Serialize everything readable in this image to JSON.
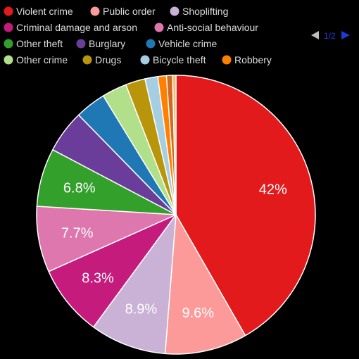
{
  "chart_data": {
    "type": "pie",
    "legend_position": "top",
    "legend_pager": {
      "current": 1,
      "total": 2,
      "text": "1/2"
    },
    "slices": [
      {
        "name": "Violent crime",
        "value": 42,
        "label": "42%",
        "color": "#e31a1c"
      },
      {
        "name": "Public order",
        "value": 9.6,
        "label": "9.6%",
        "color": "#fb9a99"
      },
      {
        "name": "Shoplifting",
        "value": 8.9,
        "label": "8.9%",
        "color": "#cab2d6"
      },
      {
        "name": "Criminal damage and arson",
        "value": 8.3,
        "label": "8.3%",
        "color": "#c51b7d"
      },
      {
        "name": "Anti-social behaviour",
        "value": 7.7,
        "label": "7.7%",
        "color": "#de77ae"
      },
      {
        "name": "Other theft",
        "value": 6.8,
        "label": "6.8%",
        "color": "#33a02c"
      },
      {
        "name": "Burglary",
        "value": 5.0,
        "label": "",
        "color": "#6a3d9a"
      },
      {
        "name": "Vehicle crime",
        "value": 3.6,
        "label": "",
        "color": "#1f78b4"
      },
      {
        "name": "Other crime",
        "value": 2.9,
        "label": "",
        "color": "#b2df8a"
      },
      {
        "name": "Drugs",
        "value": 2.3,
        "label": "",
        "color": "#b8950b"
      },
      {
        "name": "Bicycle theft",
        "value": 1.5,
        "label": "",
        "color": "#a6cee3"
      },
      {
        "name": "Robbery",
        "value": 1.0,
        "label": "",
        "color": "#ff7f00"
      },
      {
        "name": "",
        "value": 0.7,
        "label": "",
        "color": "#d2691e"
      },
      {
        "name": "",
        "value": 0.4,
        "label": "",
        "color": "#fdbf6f"
      }
    ]
  }
}
